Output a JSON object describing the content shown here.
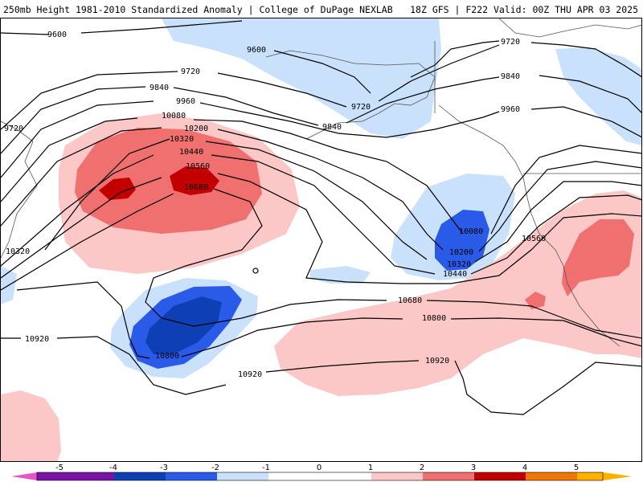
{
  "header": {
    "title_left": "250mb Height 1981-2010 Standardized Anomaly | College of DuPage NEXLAB",
    "title_right": "18Z GFS | F222 Valid: 00Z THU APR 03 2025"
  },
  "colors": {
    "neg5": "#e455c9",
    "neg4": "#7a12a6",
    "neg3": "#0f3fb4",
    "neg2": "#2a5be8",
    "neg1_5": "#5a8cf0",
    "neg1": "#c9e1fa",
    "zero": "#ffffff",
    "pos1": "#fbc7c7",
    "pos2": "#f07070",
    "pos3": "#c20000",
    "pos4": "#f07800",
    "pos5": "#ffb000"
  },
  "contour_labels": [
    {
      "id": "9600-left",
      "text": "9600"
    },
    {
      "id": "9600-mid",
      "text": "9600"
    },
    {
      "id": "9720-a",
      "text": "9720"
    },
    {
      "id": "9720-left",
      "text": "9720"
    },
    {
      "id": "9720-b",
      "text": "9720"
    },
    {
      "id": "9720-right",
      "text": "9720"
    },
    {
      "id": "9840-a",
      "text": "9840"
    },
    {
      "id": "9840-b",
      "text": "9840"
    },
    {
      "id": "9840-right",
      "text": "9840"
    },
    {
      "id": "9960-a",
      "text": "9960"
    },
    {
      "id": "9960-right",
      "text": "9960"
    },
    {
      "id": "10080-a",
      "text": "10080"
    },
    {
      "id": "10080-b",
      "text": "10080"
    },
    {
      "id": "10200-a",
      "text": "10200"
    },
    {
      "id": "10200-b",
      "text": "10200"
    },
    {
      "id": "10320-a",
      "text": "10320"
    },
    {
      "id": "10320-left",
      "text": "10320"
    },
    {
      "id": "10320-b",
      "text": "10320"
    },
    {
      "id": "10440-a",
      "text": "10440"
    },
    {
      "id": "10440-b",
      "text": "10440"
    },
    {
      "id": "10560-a",
      "text": "10560"
    },
    {
      "id": "10560-right",
      "text": "10560"
    },
    {
      "id": "10680-a",
      "text": "10680"
    },
    {
      "id": "10680-b",
      "text": "10680"
    },
    {
      "id": "10800-a",
      "text": "10800"
    },
    {
      "id": "10800-b",
      "text": "10800"
    },
    {
      "id": "10920-left",
      "text": "10920"
    },
    {
      "id": "10920-mid",
      "text": "10920"
    },
    {
      "id": "10920-right",
      "text": "10920"
    }
  ],
  "colorbar": {
    "labels": [
      "-5",
      "-4",
      "-3",
      "-2",
      "-1",
      "0",
      "1",
      "2",
      "3",
      "4",
      "5"
    ]
  }
}
